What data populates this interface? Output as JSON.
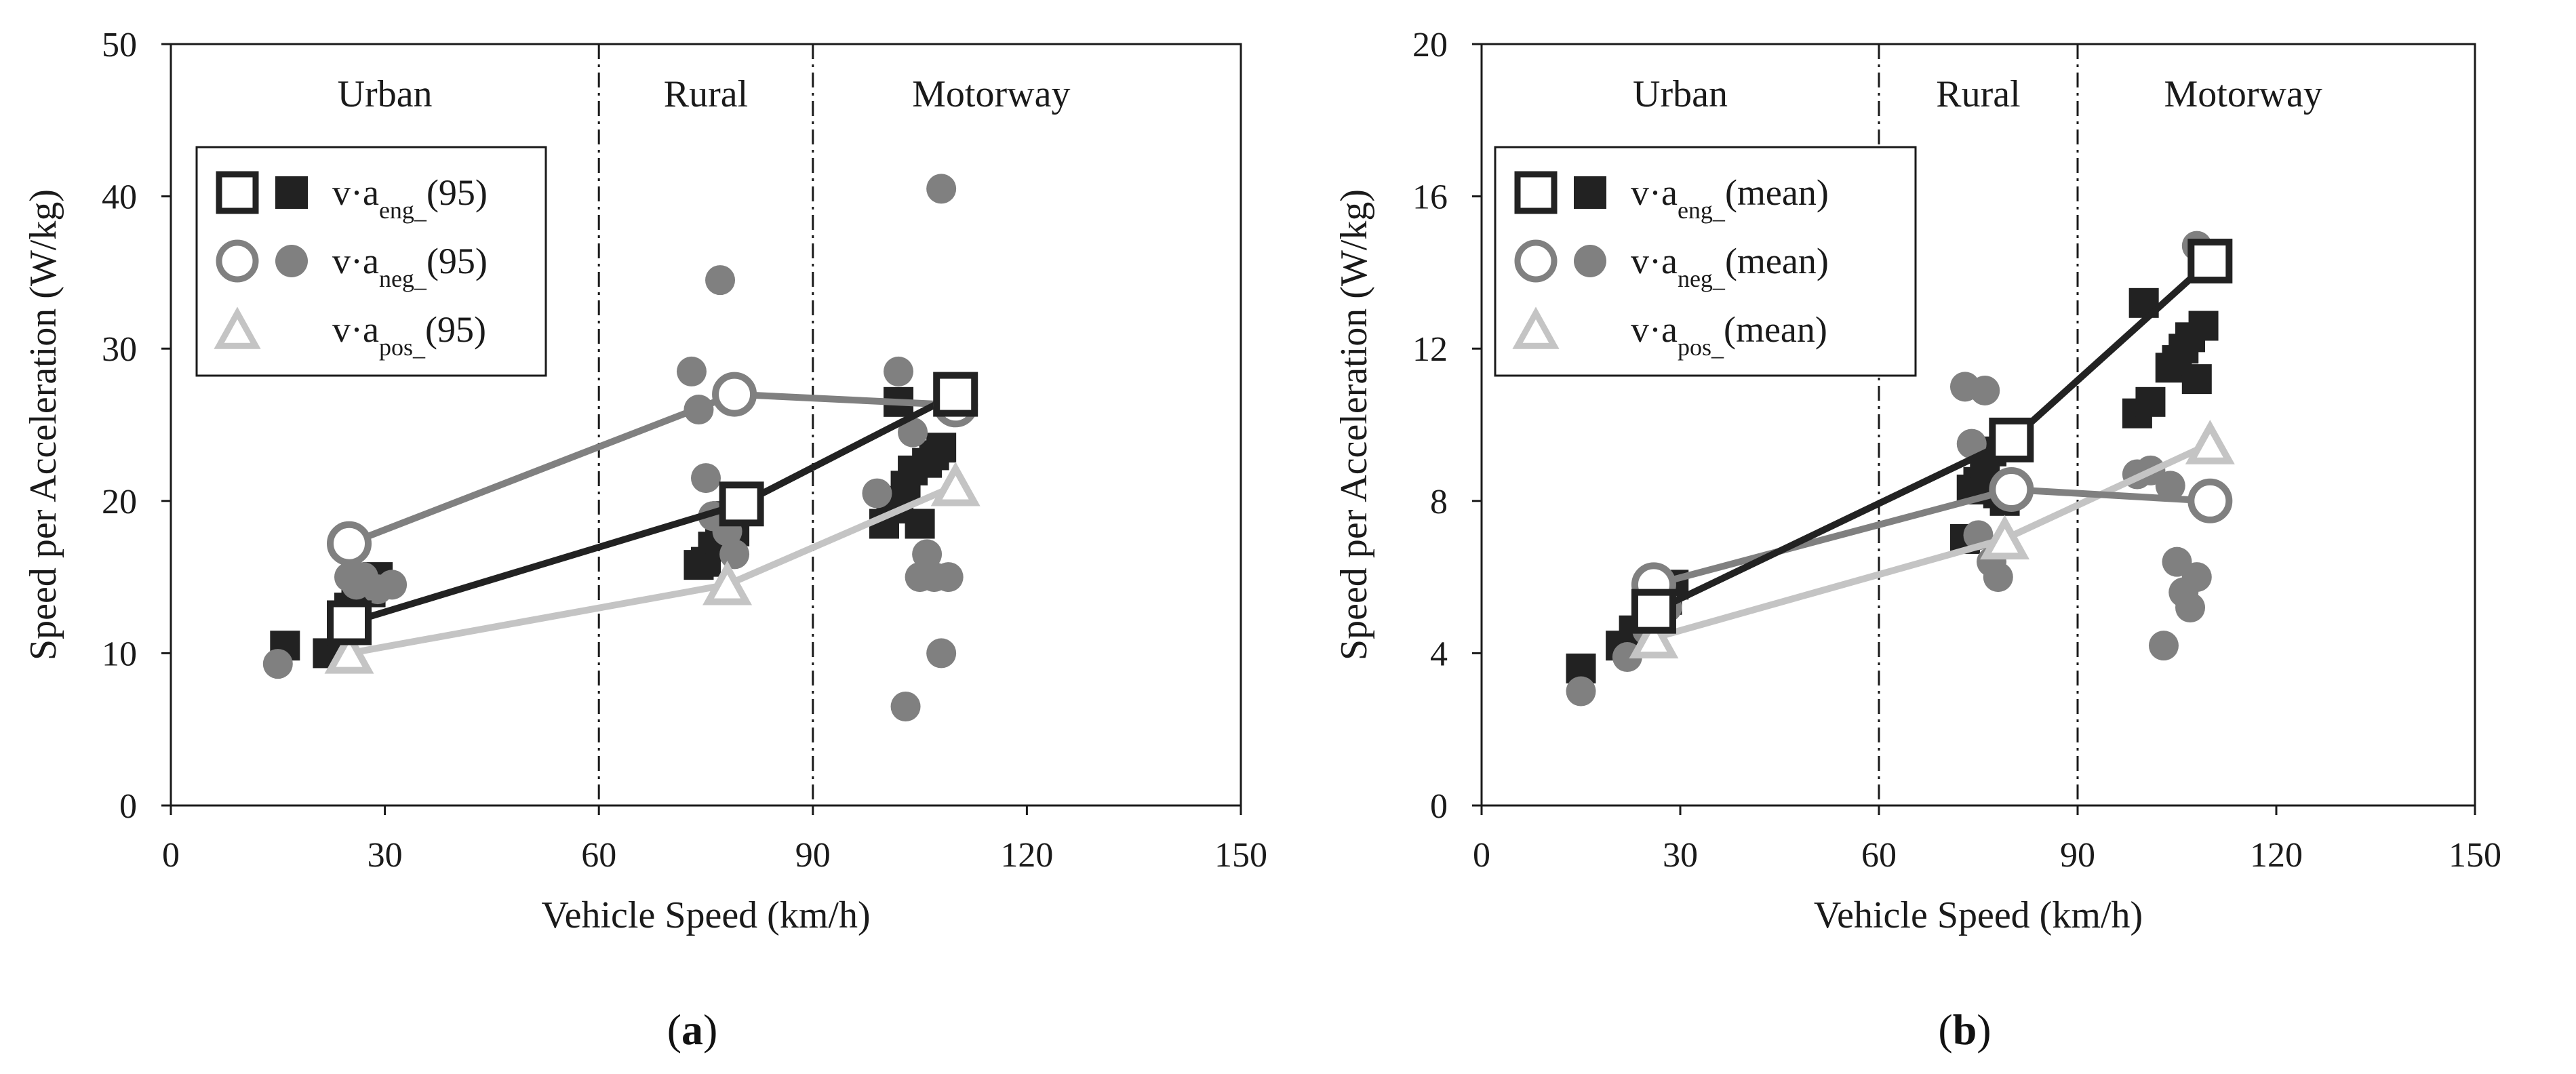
{
  "chart_data": [
    {
      "type": "scatter",
      "panel_label": "a",
      "xlabel": "Vehicle Speed (km/h)",
      "ylabel": "Speed per Acceleration (W/kg)",
      "xlim": [
        0,
        150
      ],
      "ylim": [
        0,
        50
      ],
      "xticks": [
        0,
        30,
        60,
        90,
        120,
        150
      ],
      "yticks": [
        0,
        10,
        20,
        30,
        40,
        50
      ],
      "grid": false,
      "zones": [
        {
          "label": "Urban",
          "x_center": 30
        },
        {
          "label": "Rural",
          "x_center": 75
        },
        {
          "label": "Motorway",
          "x_center": 115
        }
      ],
      "boundaries": [
        60,
        90
      ],
      "series": [
        {
          "key": "eng",
          "legend_prefix": "v·a",
          "legend_sub": "eng_",
          "legend_suffix": "(95)",
          "color": "#222222",
          "marker": "square",
          "points": [
            [
              16,
              10.5
            ],
            [
              22,
              10
            ],
            [
              24,
              11
            ],
            [
              25,
              13
            ],
            [
              26,
              14.5
            ],
            [
              28,
              14
            ],
            [
              29,
              15
            ],
            [
              74,
              15.8
            ],
            [
              75,
              16
            ],
            [
              76,
              17
            ],
            [
              77,
              17.5
            ],
            [
              78,
              19
            ],
            [
              79,
              18
            ],
            [
              80,
              20
            ],
            [
              100,
              18.5
            ],
            [
              101,
              19.5
            ],
            [
              102,
              20
            ],
            [
              103,
              21
            ],
            [
              104,
              22
            ],
            [
              105,
              18.5
            ],
            [
              106,
              22.5
            ],
            [
              107,
              23
            ],
            [
              108,
              23.5
            ],
            [
              102,
              26.5
            ],
            [
              110,
              27
            ]
          ],
          "means": [
            [
              25,
              12
            ],
            [
              80,
              19.8
            ],
            [
              110,
              27
            ]
          ]
        },
        {
          "key": "neg",
          "legend_prefix": "v·a",
          "legend_sub": "neg_",
          "legend_suffix": "(95)",
          "color": "#808080",
          "marker": "circle",
          "points": [
            [
              15,
              9.3
            ],
            [
              25,
              15
            ],
            [
              26,
              14.5
            ],
            [
              27,
              15
            ],
            [
              29,
              14.2
            ],
            [
              31,
              14.5
            ],
            [
              73,
              28.5
            ],
            [
              74,
              26
            ],
            [
              75,
              21.5
            ],
            [
              76,
              19
            ],
            [
              77,
              34.5
            ],
            [
              78,
              18
            ],
            [
              79,
              16.5
            ],
            [
              99,
              20.5
            ],
            [
              102,
              28.5
            ],
            [
              103,
              6.5
            ],
            [
              104,
              24.5
            ],
            [
              105,
              15
            ],
            [
              106,
              16.5
            ],
            [
              107,
              15
            ],
            [
              108,
              10
            ],
            [
              109,
              15
            ],
            [
              108,
              40.5
            ]
          ],
          "means": [
            [
              25,
              17.2
            ],
            [
              79,
              27
            ],
            [
              110,
              26.3
            ]
          ]
        },
        {
          "key": "pos",
          "legend_prefix": "v·a",
          "legend_sub": "pos_",
          "legend_suffix": "(95)",
          "color": "#c4c4c4",
          "marker": "triangle",
          "points": [],
          "means": [
            [
              25,
              10
            ],
            [
              78,
              14.5
            ],
            [
              110,
              21
            ]
          ]
        }
      ]
    },
    {
      "type": "scatter",
      "panel_label": "b",
      "xlabel": "Vehicle Speed (km/h)",
      "ylabel": "Speed per Acceleration (W/kg)",
      "xlim": [
        0,
        150
      ],
      "ylim": [
        0,
        20
      ],
      "xticks": [
        0,
        30,
        60,
        90,
        120,
        150
      ],
      "yticks": [
        0,
        4,
        8,
        12,
        16,
        20
      ],
      "grid": false,
      "zones": [
        {
          "label": "Urban",
          "x_center": 30
        },
        {
          "label": "Rural",
          "x_center": 75
        },
        {
          "label": "Motorway",
          "x_center": 115
        }
      ],
      "boundaries": [
        60,
        90
      ],
      "series": [
        {
          "key": "eng",
          "legend_prefix": "v·a",
          "legend_sub": "eng_",
          "legend_suffix": "(mean)",
          "color": "#222222",
          "marker": "square",
          "points": [
            [
              15,
              3.6
            ],
            [
              21,
              4.2
            ],
            [
              23,
              4.6
            ],
            [
              26,
              5
            ],
            [
              28,
              5.4
            ],
            [
              29,
              5.8
            ],
            [
              73,
              7
            ],
            [
              74,
              8.3
            ],
            [
              75,
              8.5
            ],
            [
              76,
              9
            ],
            [
              77,
              9.3
            ],
            [
              78,
              8.2
            ],
            [
              79,
              8
            ],
            [
              99,
              10.3
            ],
            [
              101,
              10.6
            ],
            [
              100,
              13.2
            ],
            [
              104,
              11.5
            ],
            [
              105,
              11.7
            ],
            [
              106,
              12
            ],
            [
              107,
              12.3
            ],
            [
              108,
              11.2
            ],
            [
              109,
              12.6
            ]
          ],
          "means": [
            [
              26,
              5.1
            ],
            [
              80,
              9.6
            ],
            [
              110,
              14.3
            ]
          ]
        },
        {
          "key": "neg",
          "legend_prefix": "v·a",
          "legend_sub": "neg_",
          "legend_suffix": "(mean)",
          "color": "#808080",
          "marker": "circle",
          "points": [
            [
              15,
              3
            ],
            [
              22,
              3.9
            ],
            [
              25,
              4.6
            ],
            [
              28,
              5.2
            ],
            [
              73,
              11
            ],
            [
              74,
              9.5
            ],
            [
              75,
              7.1
            ],
            [
              76,
              10.9
            ],
            [
              77,
              6.4
            ],
            [
              78,
              6
            ],
            [
              99,
              8.7
            ],
            [
              101,
              8.8
            ],
            [
              103,
              4.2
            ],
            [
              104,
              8.4
            ],
            [
              105,
              6.4
            ],
            [
              106,
              5.6
            ],
            [
              107,
              5.2
            ],
            [
              108,
              6
            ],
            [
              108,
              14.7
            ]
          ],
          "means": [
            [
              26,
              5.8
            ],
            [
              80,
              8.3
            ],
            [
              110,
              8
            ]
          ]
        },
        {
          "key": "pos",
          "legend_prefix": "v·a",
          "legend_sub": "pos_",
          "legend_suffix": "(mean)",
          "color": "#c4c4c4",
          "marker": "triangle",
          "points": [],
          "means": [
            [
              26,
              4.4
            ],
            [
              79,
              7
            ],
            [
              110,
              9.5
            ]
          ]
        }
      ]
    }
  ]
}
